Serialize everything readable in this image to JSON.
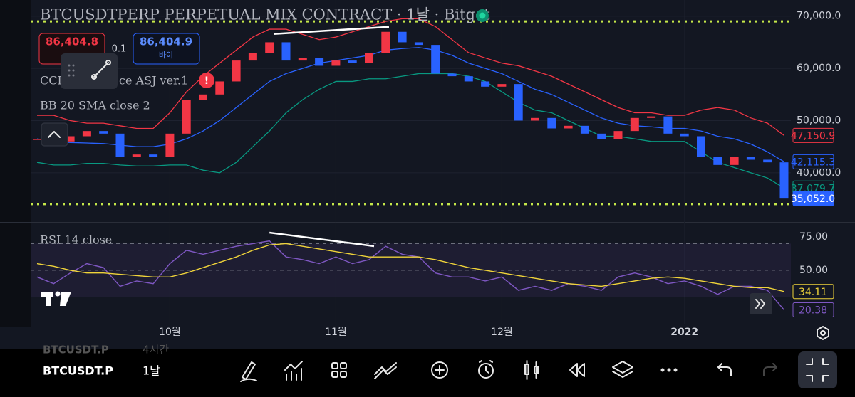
{
  "header": {
    "title": "BTCUSDTPERP PERPETUAL MIX CONTRACT · 1날 · Bitget",
    "sell_price": "86,404.8",
    "qty": "0.1",
    "buy_price": "86,404.9",
    "buy_label": "바이",
    "indicators": [
      "CCI",
      "ce ASJ ver.1",
      "BB 20 SMA close 2"
    ]
  },
  "chart_data": [
    {
      "type": "candlestick",
      "categories": [
        null,
        null,
        null,
        null,
        null,
        null,
        null,
        null,
        "10월",
        null,
        null,
        null,
        null,
        null,
        null,
        null,
        null,
        null,
        "11월",
        null,
        null,
        null,
        null,
        null,
        null,
        null,
        null,
        null,
        "12월",
        null,
        null,
        null,
        null,
        null,
        null,
        null,
        null,
        null,
        null,
        "2022",
        null,
        null,
        null,
        null,
        null,
        null
      ],
      "values": [
        46500,
        46000,
        47000,
        48000,
        47500,
        43000,
        43500,
        43000,
        47500,
        54000,
        55000,
        57500,
        61500,
        63000,
        65000,
        61500,
        62000,
        60500,
        61500,
        61000,
        63000,
        67000,
        65000,
        64500,
        59000,
        58500,
        57500,
        56500,
        57000,
        50000,
        50500,
        48500,
        49000,
        47500,
        46500,
        48000,
        50500,
        50800,
        47500,
        47000,
        43000,
        41500,
        43000,
        42500,
        42000,
        35052
      ],
      "up_color": "#f23645",
      "down_color": "#2962ff",
      "bands": [
        {
          "color": "#f23645",
          "values": [
            51000,
            51000,
            50000,
            49500,
            49500,
            49000,
            48500,
            48500,
            51500,
            55500,
            58500,
            61000,
            63500,
            66000,
            67500,
            67500,
            66500,
            65500,
            66000,
            67000,
            68000,
            69000,
            69500,
            69500,
            68000,
            65500,
            63000,
            62000,
            61000,
            60500,
            59500,
            58500,
            57000,
            55500,
            54000,
            52500,
            51500,
            51500,
            51000,
            51000,
            52000,
            52500,
            52000,
            50500,
            49500,
            47150.9
          ]
        },
        {
          "color": "#2962ff",
          "values": [
            46500,
            46000,
            45800,
            45700,
            45600,
            45300,
            45000,
            45000,
            45500,
            46500,
            48000,
            50000,
            52500,
            55000,
            57500,
            59000,
            60000,
            61000,
            61500,
            62000,
            62500,
            63500,
            63800,
            64000,
            63500,
            62500,
            61000,
            60000,
            59000,
            57500,
            56000,
            55000,
            53500,
            52000,
            50500,
            49500,
            49000,
            48800,
            48500,
            48500,
            48000,
            47000,
            46500,
            45500,
            44000,
            42115.3
          ]
        },
        {
          "color": "#089981",
          "values": [
            42000,
            41500,
            41500,
            41800,
            41800,
            41500,
            41300,
            41300,
            41500,
            41500,
            40500,
            40000,
            42000,
            45000,
            48000,
            51500,
            54000,
            56000,
            57500,
            57500,
            58000,
            58000,
            58500,
            59000,
            59000,
            59000,
            58500,
            57500,
            55500,
            53500,
            52000,
            51500,
            50000,
            48500,
            47000,
            47000,
            46500,
            46000,
            46000,
            46000,
            44000,
            42000,
            41000,
            40000,
            39000,
            37079.7
          ]
        }
      ],
      "ylim": [
        32210,
        73100
      ],
      "yticks": [
        {
          "value": 70000,
          "label": "70,000.0"
        },
        {
          "value": 60000,
          "label": "60,000.0"
        },
        {
          "value": 50000,
          "label": "50,000.0"
        },
        {
          "value": 40000,
          "label": "40,000.0"
        }
      ],
      "hlines": [
        69000,
        34000
      ],
      "hline_color": "#c5e84a",
      "price_tags": [
        {
          "value": 47150.9,
          "label": "47,150.9",
          "color": "#f23645"
        },
        {
          "value": 42115.3,
          "label": "42,115.3",
          "color": "#2962ff"
        },
        {
          "value": 37079.7,
          "label": "37,079.7",
          "color": "#089981"
        },
        {
          "value": 35052,
          "label": "35,052.0",
          "color": "#2962ff",
          "filled": true
        }
      ],
      "trendline": {
        "x": [
          14.25,
          21.2
        ],
        "values": [
          66590,
          67950
        ]
      }
    },
    {
      "type": "line",
      "title": "RSI 14 close",
      "series": [
        {
          "color": "#7e57c2",
          "values": [
            45,
            40,
            48,
            55,
            52,
            38,
            42,
            40,
            55,
            65,
            62,
            65,
            68,
            70,
            72,
            60,
            58,
            55,
            60,
            55,
            58,
            68,
            62,
            60,
            48,
            45,
            45,
            42,
            45,
            35,
            38,
            35,
            40,
            38,
            35,
            45,
            48,
            45,
            40,
            42,
            38,
            32,
            38,
            38,
            35,
            20.38
          ]
        },
        {
          "color": "#f0d43a",
          "values": [
            55,
            53,
            50,
            48,
            48,
            47,
            46,
            45,
            45,
            48,
            52,
            56,
            60,
            65,
            69,
            70,
            68,
            66,
            64,
            62,
            60,
            60,
            60,
            60,
            58,
            55,
            52,
            50,
            48,
            46,
            44,
            42,
            40,
            39,
            38,
            40,
            42,
            44,
            45,
            44,
            42,
            40,
            38,
            37,
            37,
            34.11
          ]
        }
      ],
      "ylim": [
        10,
        84.6
      ],
      "yticks": [
        {
          "value": 75,
          "label": "75.00"
        },
        {
          "value": 50,
          "label": "50.00"
        }
      ],
      "bands": [
        70,
        50,
        30
      ],
      "price_tags": [
        {
          "value": 34.11,
          "label": "34.11",
          "color": "#f0d43a"
        },
        {
          "value": 20.38,
          "label": "20.38",
          "color": "#7e57c2"
        }
      ],
      "trendline": {
        "x": [
          14.0,
          20.3
        ],
        "values": [
          78.2,
          68.1
        ]
      }
    }
  ],
  "footer": {
    "symbol": "BTCUSDT.P",
    "interval": "1날",
    "ghost_symbol": "BTCUSDT.P",
    "ghost_interval": "4시간"
  }
}
